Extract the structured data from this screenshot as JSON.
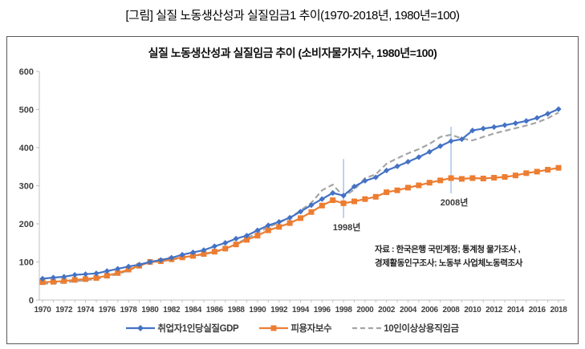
{
  "page_title": "[그림] 실질 노동생산성과 실질임금1 추이(1970-2018년, 1980년=100)",
  "chart": {
    "source_line1": "자료 : 한국은행 국민계정; 통계청 물가조사 ,",
    "source_line2": "경제활동인구조사; 노동부 사업체노동력조사"
  },
  "chart_data": {
    "type": "line",
    "title": "실질 노동생산성과 실질임금 추이 (소비자물가지수, 1980년=100)",
    "xlabel": "",
    "ylabel": "",
    "ylim": [
      0,
      600
    ],
    "y_ticks": [
      0,
      100,
      200,
      300,
      400,
      500,
      600
    ],
    "x_range": [
      1970,
      2018
    ],
    "x_tick_label_step": 2,
    "grid": false,
    "legend_position": "bottom",
    "axis_color": "#BFBFBF",
    "series": [
      {
        "name": "취업자1인당실질GDP",
        "color": "#4472C4",
        "marker": "diamond",
        "dash": "",
        "values": [
          56,
          59,
          61,
          66,
          68,
          70,
          76,
          82,
          88,
          93,
          100,
          105,
          111,
          119,
          125,
          131,
          141,
          150,
          161,
          169,
          183,
          196,
          205,
          216,
          232,
          249,
          265,
          281,
          274,
          298,
          313,
          322,
          340,
          351,
          363,
          375,
          389,
          404,
          417,
          422,
          445,
          450,
          454,
          459,
          464,
          470,
          478,
          489,
          501
        ]
      },
      {
        "name": "피용자보수",
        "color": "#ED7D31",
        "marker": "square",
        "dash": "",
        "values": [
          47,
          48,
          50,
          53,
          55,
          58,
          64,
          71,
          80,
          90,
          100,
          102,
          107,
          112,
          116,
          121,
          127,
          135,
          146,
          158,
          169,
          183,
          192,
          202,
          215,
          231,
          248,
          262,
          254,
          259,
          265,
          271,
          283,
          288,
          295,
          301,
          308,
          314,
          320,
          318,
          320,
          319,
          321,
          323,
          327,
          333,
          337,
          342,
          347
        ]
      },
      {
        "name": "10인이상상용직임금",
        "color": "#A5A5A5",
        "marker": "none",
        "dash": "7 4",
        "values": [
          43,
          44,
          46,
          49,
          52,
          55,
          61,
          68,
          78,
          89,
          100,
          101,
          106,
          111,
          115,
          120,
          126,
          134,
          147,
          162,
          176,
          191,
          203,
          216,
          235,
          255,
          288,
          303,
          272,
          290,
          320,
          330,
          358,
          372,
          385,
          396,
          410,
          428,
          434,
          424,
          419,
          428,
          437,
          444,
          451,
          458,
          466,
          477,
          492
        ]
      }
    ],
    "event_lines": [
      {
        "x": 1998,
        "label": "1998년",
        "color": "#9DC3E6",
        "value_from": 215,
        "value_to": 370
      },
      {
        "x": 2008,
        "label": "2008년",
        "color": "#9DC3E6",
        "value_from": 280,
        "value_to": 455
      }
    ]
  }
}
